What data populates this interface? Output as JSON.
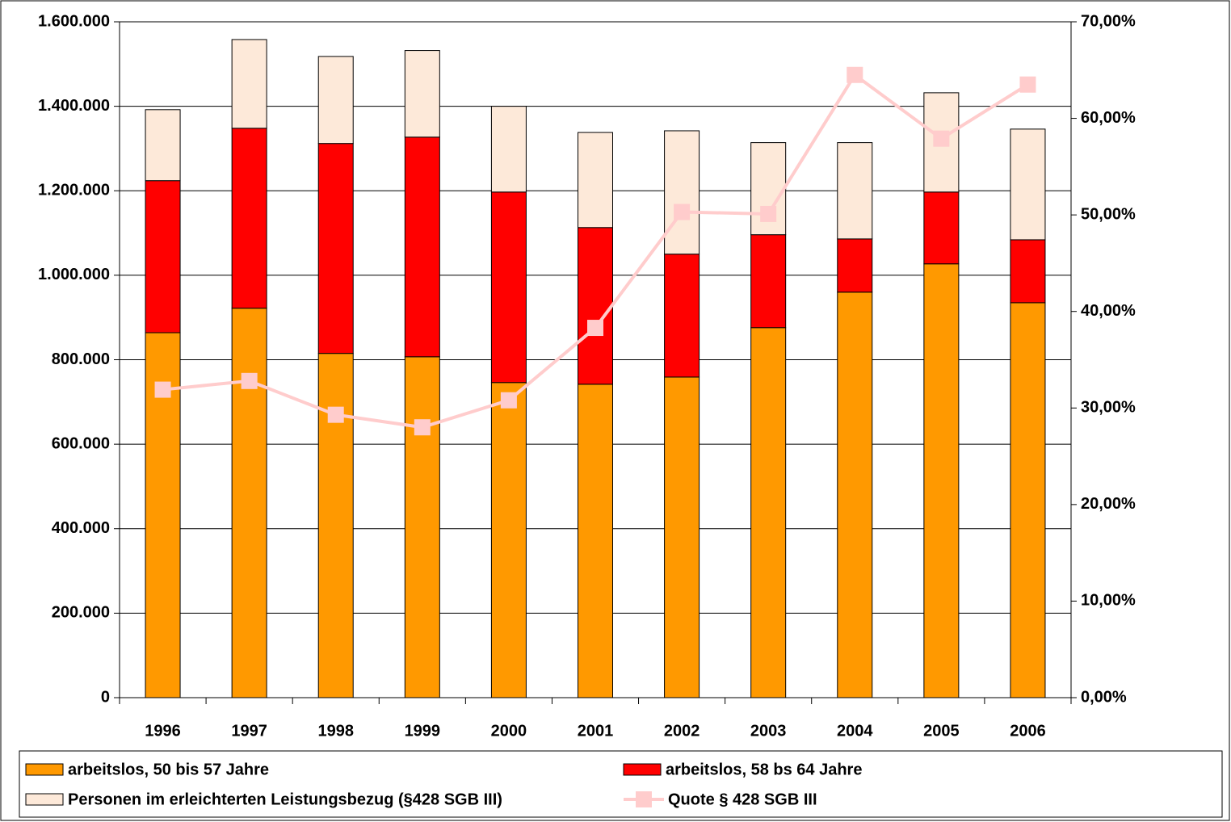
{
  "chart_data": {
    "type": "bar",
    "stacked": true,
    "categories": [
      "1996",
      "1997",
      "1998",
      "1999",
      "2000",
      "2001",
      "2002",
      "2003",
      "2004",
      "2005",
      "2006"
    ],
    "series": [
      {
        "name": "arbeitslos, 50 bis 57 Jahre",
        "type": "bar",
        "color": "#ff9900",
        "values": [
          864000,
          922000,
          815000,
          807000,
          746000,
          742000,
          759000,
          876000,
          960000,
          1027000,
          935000
        ]
      },
      {
        "name": "arbeitslos, 58 bs 64 Jahre",
        "type": "bar",
        "color": "#ff0000",
        "values": [
          360000,
          426000,
          497000,
          520000,
          451000,
          371000,
          291000,
          220000,
          126000,
          170000,
          149000
        ]
      },
      {
        "name": "Personen im erleichterten Leistungsbezug (§428 SGB III)",
        "type": "bar",
        "color": "#fde9d9",
        "values": [
          168000,
          210000,
          206000,
          205000,
          203000,
          225000,
          292000,
          218000,
          228000,
          235000,
          262000
        ]
      },
      {
        "name": "Quote § 428 SGB III",
        "type": "line",
        "axis": "y2",
        "color": "#ffcccc",
        "values": [
          31.9,
          32.8,
          29.3,
          28.0,
          30.8,
          38.3,
          50.3,
          50.1,
          64.5,
          57.9,
          63.5
        ]
      }
    ],
    "ylim": [
      0,
      1600000
    ],
    "yticks": [
      0,
      {
        "value": 200000,
        "label": "200.000"
      },
      {
        "value": 400000,
        "label": "400.000"
      },
      {
        "value": 600000,
        "label": "600.000"
      },
      {
        "value": 800000,
        "label": "800.000"
      },
      {
        "value": 1000000,
        "label": "1.000.000"
      },
      {
        "value": 1200000,
        "label": "1.200.000"
      },
      {
        "value": 1400000,
        "label": "1.400.000"
      },
      {
        "value": 1600000,
        "label": "1.600.000"
      }
    ],
    "y2lim": [
      0,
      70
    ],
    "y2ticks": [
      {
        "value": 0,
        "label": "0,00%"
      },
      {
        "value": 10,
        "label": "10,00%"
      },
      {
        "value": 20,
        "label": "20,00%"
      },
      {
        "value": 30,
        "label": "30,00%"
      },
      {
        "value": 40,
        "label": "40,00%"
      },
      {
        "value": 50,
        "label": "50,00%"
      },
      {
        "value": 60,
        "label": "60,00%"
      },
      {
        "value": 70,
        "label": "70,00%"
      }
    ],
    "grid": true,
    "legend": "bottom"
  }
}
